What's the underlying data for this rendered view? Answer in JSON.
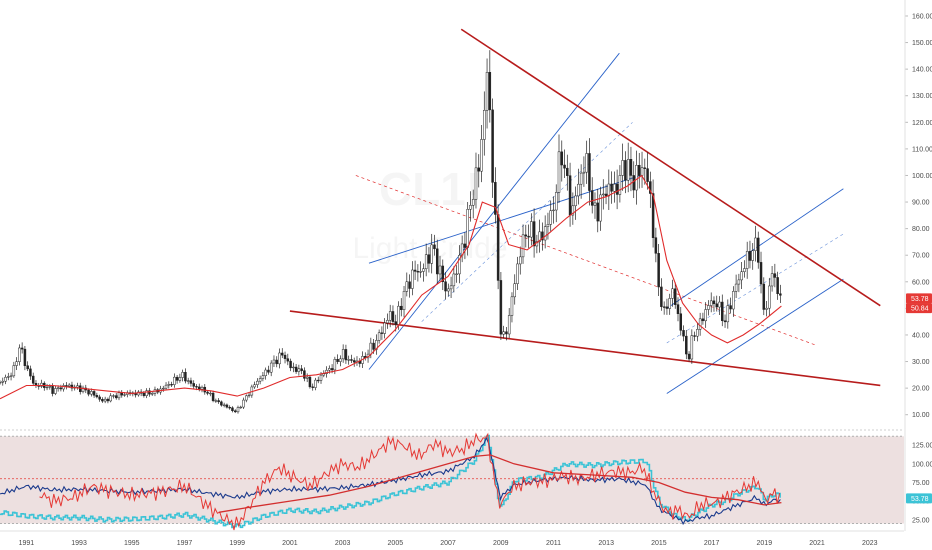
{
  "chart_data": {
    "type": "candlestick_with_indicator",
    "watermark": {
      "symbol": "CL1!",
      "name": "Light Crude"
    },
    "price_axis": {
      "ticks": [
        10,
        20,
        30,
        40,
        50,
        60,
        70,
        80,
        90,
        100,
        110,
        120,
        130,
        140,
        150,
        160
      ],
      "labels": [
        "10.00",
        "20.00",
        "30.00",
        "40.00",
        "50.00",
        "60.00",
        "70.00",
        "80.00",
        "90.00",
        "100.00",
        "110.00",
        "120.00",
        "130.00",
        "140.00",
        "150.00",
        "160.00"
      ],
      "range": [
        5,
        163
      ]
    },
    "time_axis": {
      "labels": [
        "1991",
        "1993",
        "1995",
        "1997",
        "1999",
        "2001",
        "2003",
        "2005",
        "2007",
        "2009",
        "2011",
        "2013",
        "2015",
        "2017",
        "2019",
        "2021",
        "2023"
      ],
      "range": [
        1990.0,
        2024.3
      ]
    },
    "last_price": {
      "value": 53.78,
      "label": "53.78",
      "color": "#e53935"
    },
    "ma_value": {
      "value": 50.84,
      "label": "50.84",
      "color": "#e53935"
    },
    "colors": {
      "candle": "#222222",
      "ma": "#e02b2b",
      "channel": "#2a62c9",
      "trendline": "#b71c1c",
      "indicator_red": "#e53935",
      "indicator_navy": "#1b3a8c",
      "indicator_cyan": "#3cc3d6",
      "indicator_ma": "#d32f2f",
      "band_fill": "#eadada"
    },
    "price_series": [
      [
        1990.0,
        22
      ],
      [
        1990.5,
        26
      ],
      [
        1990.75,
        36
      ],
      [
        1991.0,
        28
      ],
      [
        1991.3,
        21
      ],
      [
        1991.7,
        21
      ],
      [
        1992.0,
        19
      ],
      [
        1992.5,
        21
      ],
      [
        1993.0,
        20
      ],
      [
        1993.5,
        18
      ],
      [
        1993.9,
        15
      ],
      [
        1994.3,
        17
      ],
      [
        1994.8,
        18
      ],
      [
        1995.2,
        18
      ],
      [
        1995.6,
        18
      ],
      [
        1996.0,
        19
      ],
      [
        1996.5,
        22
      ],
      [
        1996.9,
        25
      ],
      [
        1997.3,
        21
      ],
      [
        1997.8,
        19
      ],
      [
        1998.2,
        15
      ],
      [
        1998.6,
        13
      ],
      [
        1998.95,
        11
      ],
      [
        1999.3,
        16
      ],
      [
        1999.7,
        22
      ],
      [
        2000.0,
        25
      ],
      [
        2000.4,
        30
      ],
      [
        2000.75,
        33
      ],
      [
        2001.0,
        28
      ],
      [
        2001.5,
        26
      ],
      [
        2001.8,
        20
      ],
      [
        2002.2,
        25
      ],
      [
        2002.6,
        28
      ],
      [
        2003.0,
        33
      ],
      [
        2003.3,
        30
      ],
      [
        2003.7,
        30
      ],
      [
        2004.0,
        34
      ],
      [
        2004.3,
        38
      ],
      [
        2004.8,
        48
      ],
      [
        2005.0,
        44
      ],
      [
        2005.3,
        55
      ],
      [
        2005.7,
        64
      ],
      [
        2006.0,
        64
      ],
      [
        2006.4,
        73
      ],
      [
        2006.8,
        60
      ],
      [
        2007.0,
        56
      ],
      [
        2007.3,
        64
      ],
      [
        2007.6,
        75
      ],
      [
        2007.9,
        92
      ],
      [
        2008.2,
        105
      ],
      [
        2008.5,
        140
      ],
      [
        2008.75,
        90
      ],
      [
        2009.0,
        42
      ],
      [
        2009.15,
        38
      ],
      [
        2009.4,
        52
      ],
      [
        2009.7,
        70
      ],
      [
        2010.0,
        80
      ],
      [
        2010.4,
        75
      ],
      [
        2010.7,
        80
      ],
      [
        2011.0,
        88
      ],
      [
        2011.3,
        110
      ],
      [
        2011.7,
        85
      ],
      [
        2012.0,
        100
      ],
      [
        2012.3,
        105
      ],
      [
        2012.5,
        85
      ],
      [
        2012.8,
        90
      ],
      [
        2013.0,
        95
      ],
      [
        2013.4,
        95
      ],
      [
        2013.7,
        105
      ],
      [
        2014.0,
        98
      ],
      [
        2014.45,
        104
      ],
      [
        2014.7,
        90
      ],
      [
        2014.95,
        60
      ],
      [
        2015.2,
        48
      ],
      [
        2015.5,
        57
      ],
      [
        2015.9,
        40
      ],
      [
        2016.1,
        30
      ],
      [
        2016.3,
        40
      ],
      [
        2016.6,
        45
      ],
      [
        2016.9,
        52
      ],
      [
        2017.2,
        52
      ],
      [
        2017.5,
        45
      ],
      [
        2017.9,
        58
      ],
      [
        2018.2,
        65
      ],
      [
        2018.4,
        70
      ],
      [
        2018.75,
        74
      ],
      [
        2018.95,
        48
      ],
      [
        2019.1,
        52
      ],
      [
        2019.3,
        64
      ],
      [
        2019.5,
        57
      ],
      [
        2019.65,
        54
      ]
    ],
    "ma_series": [
      [
        1990.0,
        16
      ],
      [
        1991.0,
        21
      ],
      [
        1992.0,
        21
      ],
      [
        1993.0,
        20
      ],
      [
        1994.0,
        19
      ],
      [
        1995.0,
        18
      ],
      [
        1996.0,
        19
      ],
      [
        1997.0,
        20
      ],
      [
        1998.0,
        19
      ],
      [
        1999.0,
        17
      ],
      [
        2000.0,
        20
      ],
      [
        2001.0,
        24
      ],
      [
        2002.0,
        25
      ],
      [
        2003.0,
        27
      ],
      [
        2004.0,
        32
      ],
      [
        2005.0,
        42
      ],
      [
        2006.0,
        55
      ],
      [
        2007.0,
        62
      ],
      [
        2007.8,
        74
      ],
      [
        2008.3,
        90
      ],
      [
        2008.8,
        88
      ],
      [
        2009.3,
        74
      ],
      [
        2010.0,
        72
      ],
      [
        2010.8,
        78
      ],
      [
        2011.5,
        84
      ],
      [
        2012.3,
        90
      ],
      [
        2013.0,
        92
      ],
      [
        2013.8,
        96
      ],
      [
        2014.35,
        100
      ],
      [
        2014.8,
        92
      ],
      [
        2015.3,
        68
      ],
      [
        2015.9,
        52
      ],
      [
        2016.5,
        44
      ],
      [
        2017.0,
        40
      ],
      [
        2017.6,
        37
      ],
      [
        2018.2,
        40
      ],
      [
        2018.8,
        44
      ],
      [
        2019.65,
        50.84
      ]
    ],
    "indicator": {
      "upper_level": 100,
      "lower_level": 20,
      "ticks": [
        25,
        50,
        75,
        100,
        125
      ],
      "labels": [
        "25.00",
        "50.00",
        "75.00",
        "100.00",
        "125.00"
      ],
      "range": [
        14,
        140
      ],
      "last_label": "53.78",
      "red_series": [
        [
          1991.5,
          60
        ],
        [
          1992.0,
          50
        ],
        [
          1992.8,
          55
        ],
        [
          1993.5,
          70
        ],
        [
          1994.0,
          65
        ],
        [
          1995.0,
          58
        ],
        [
          1996.0,
          62
        ],
        [
          1997.0,
          70
        ],
        [
          1998.0,
          40
        ],
        [
          1998.6,
          25
        ],
        [
          1999.0,
          18
        ],
        [
          1999.5,
          45
        ],
        [
          2000.0,
          75
        ],
        [
          2000.6,
          95
        ],
        [
          2001.0,
          85
        ],
        [
          2001.8,
          70
        ],
        [
          2002.5,
          90
        ],
        [
          2003.0,
          100
        ],
        [
          2003.6,
          95
        ],
        [
          2004.2,
          112
        ],
        [
          2004.8,
          130
        ],
        [
          2005.3,
          125
        ],
        [
          2005.9,
          110
        ],
        [
          2006.5,
          128
        ],
        [
          2007.0,
          115
        ],
        [
          2007.6,
          120
        ],
        [
          2008.0,
          132
        ],
        [
          2008.5,
          135
        ],
        [
          2008.85,
          60
        ],
        [
          2009.0,
          45
        ],
        [
          2009.4,
          68
        ],
        [
          2010.0,
          75
        ],
        [
          2010.8,
          78
        ],
        [
          2011.3,
          84
        ],
        [
          2012.0,
          80
        ],
        [
          2012.7,
          86
        ],
        [
          2013.3,
          90
        ],
        [
          2013.9,
          88
        ],
        [
          2014.4,
          95
        ],
        [
          2014.9,
          55
        ],
        [
          2015.3,
          35
        ],
        [
          2015.8,
          38
        ],
        [
          2016.1,
          28
        ],
        [
          2016.6,
          45
        ],
        [
          2017.2,
          48
        ],
        [
          2017.8,
          60
        ],
        [
          2018.3,
          68
        ],
        [
          2018.8,
          76
        ],
        [
          2019.0,
          50
        ],
        [
          2019.3,
          60
        ],
        [
          2019.65,
          55
        ]
      ],
      "navy_series": [
        [
          1990.0,
          60
        ],
        [
          1991.0,
          70
        ],
        [
          1992.0,
          65
        ],
        [
          1993.0,
          66
        ],
        [
          1994.0,
          64
        ],
        [
          1995.0,
          62
        ],
        [
          1996.0,
          64
        ],
        [
          1997.0,
          66
        ],
        [
          1998.0,
          60
        ],
        [
          1999.0,
          55
        ],
        [
          2000.0,
          63
        ],
        [
          2001.0,
          66
        ],
        [
          2002.0,
          66
        ],
        [
          2003.0,
          68
        ],
        [
          2004.0,
          72
        ],
        [
          2005.0,
          78
        ],
        [
          2006.0,
          85
        ],
        [
          2007.0,
          90
        ],
        [
          2008.0,
          110
        ],
        [
          2008.5,
          135
        ],
        [
          2008.85,
          75
        ],
        [
          2009.0,
          55
        ],
        [
          2009.5,
          72
        ],
        [
          2010.5,
          78
        ],
        [
          2011.5,
          82
        ],
        [
          2012.5,
          78
        ],
        [
          2013.5,
          80
        ],
        [
          2014.5,
          72
        ],
        [
          2015.0,
          40
        ],
        [
          2015.5,
          30
        ],
        [
          2016.0,
          22
        ],
        [
          2016.5,
          28
        ],
        [
          2017.0,
          30
        ],
        [
          2017.5,
          38
        ],
        [
          2018.0,
          45
        ],
        [
          2018.7,
          55
        ],
        [
          2019.0,
          45
        ],
        [
          2019.4,
          52
        ],
        [
          2019.65,
          50
        ]
      ],
      "cyan_series": [
        [
          1990.0,
          35
        ],
        [
          1991.0,
          30
        ],
        [
          1992.0,
          28
        ],
        [
          1993.0,
          28
        ],
        [
          1994.0,
          25
        ],
        [
          1995.0,
          26
        ],
        [
          1996.0,
          28
        ],
        [
          1997.0,
          32
        ],
        [
          1998.0,
          24
        ],
        [
          1999.0,
          16
        ],
        [
          2000.0,
          30
        ],
        [
          2001.0,
          38
        ],
        [
          2002.0,
          36
        ],
        [
          2003.0,
          42
        ],
        [
          2004.0,
          48
        ],
        [
          2005.0,
          60
        ],
        [
          2006.0,
          68
        ],
        [
          2007.0,
          75
        ],
        [
          2008.0,
          105
        ],
        [
          2008.5,
          138
        ],
        [
          2008.85,
          60
        ],
        [
          2009.0,
          40
        ],
        [
          2009.5,
          78
        ],
        [
          2010.5,
          82
        ],
        [
          2011.5,
          100
        ],
        [
          2012.5,
          98
        ],
        [
          2013.5,
          102
        ],
        [
          2014.5,
          104
        ],
        [
          2015.0,
          48
        ],
        [
          2015.5,
          32
        ],
        [
          2016.0,
          25
        ],
        [
          2016.5,
          35
        ],
        [
          2017.0,
          45
        ],
        [
          2017.5,
          50
        ],
        [
          2018.0,
          60
        ],
        [
          2018.7,
          70
        ],
        [
          2019.0,
          52
        ],
        [
          2019.4,
          60
        ],
        [
          2019.65,
          55
        ]
      ],
      "ma_series": [
        [
          1998.3,
          35
        ],
        [
          1999.5,
          42
        ],
        [
          2001.0,
          50
        ],
        [
          2002.5,
          58
        ],
        [
          2004.0,
          70
        ],
        [
          2005.5,
          85
        ],
        [
          2007.0,
          100
        ],
        [
          2008.0,
          110
        ],
        [
          2008.6,
          112
        ],
        [
          2009.5,
          100
        ],
        [
          2011.0,
          88
        ],
        [
          2012.5,
          85
        ],
        [
          2014.0,
          82
        ],
        [
          2015.0,
          75
        ],
        [
          2016.0,
          62
        ],
        [
          2017.0,
          55
        ],
        [
          2018.0,
          52
        ],
        [
          2019.0,
          45
        ],
        [
          2019.65,
          48
        ]
      ]
    },
    "trendlines": [
      {
        "from": [
          2007.5,
          155
        ],
        "to": [
          2023.4,
          51
        ],
        "style": "solid",
        "role": "resistance"
      },
      {
        "from": [
          2001.0,
          49
        ],
        "to": [
          2023.4,
          21
        ],
        "style": "solid",
        "role": "support"
      }
    ],
    "channels": [
      {
        "from": [
          2004.0,
          27
        ],
        "to": [
          2013.5,
          146
        ],
        "style": "solid"
      },
      {
        "from": [
          2004.0,
          67
        ],
        "to": [
          2014.3,
          100
        ],
        "style": "solid"
      },
      {
        "from": [
          2006.0,
          45
        ],
        "to": [
          2014.0,
          120
        ],
        "style": "dashed"
      },
      {
        "from": [
          2003.5,
          100
        ],
        "to": [
          2021.0,
          36
        ],
        "style": "dashed-red"
      },
      {
        "from": [
          2015.3,
          18
        ],
        "to": [
          2022.0,
          61
        ],
        "style": "solid"
      },
      {
        "from": [
          2015.3,
          37
        ],
        "to": [
          2022.0,
          78
        ],
        "style": "dashed"
      },
      {
        "from": [
          2015.3,
          50
        ],
        "to": [
          2022.0,
          95
        ],
        "style": "solid"
      }
    ]
  }
}
